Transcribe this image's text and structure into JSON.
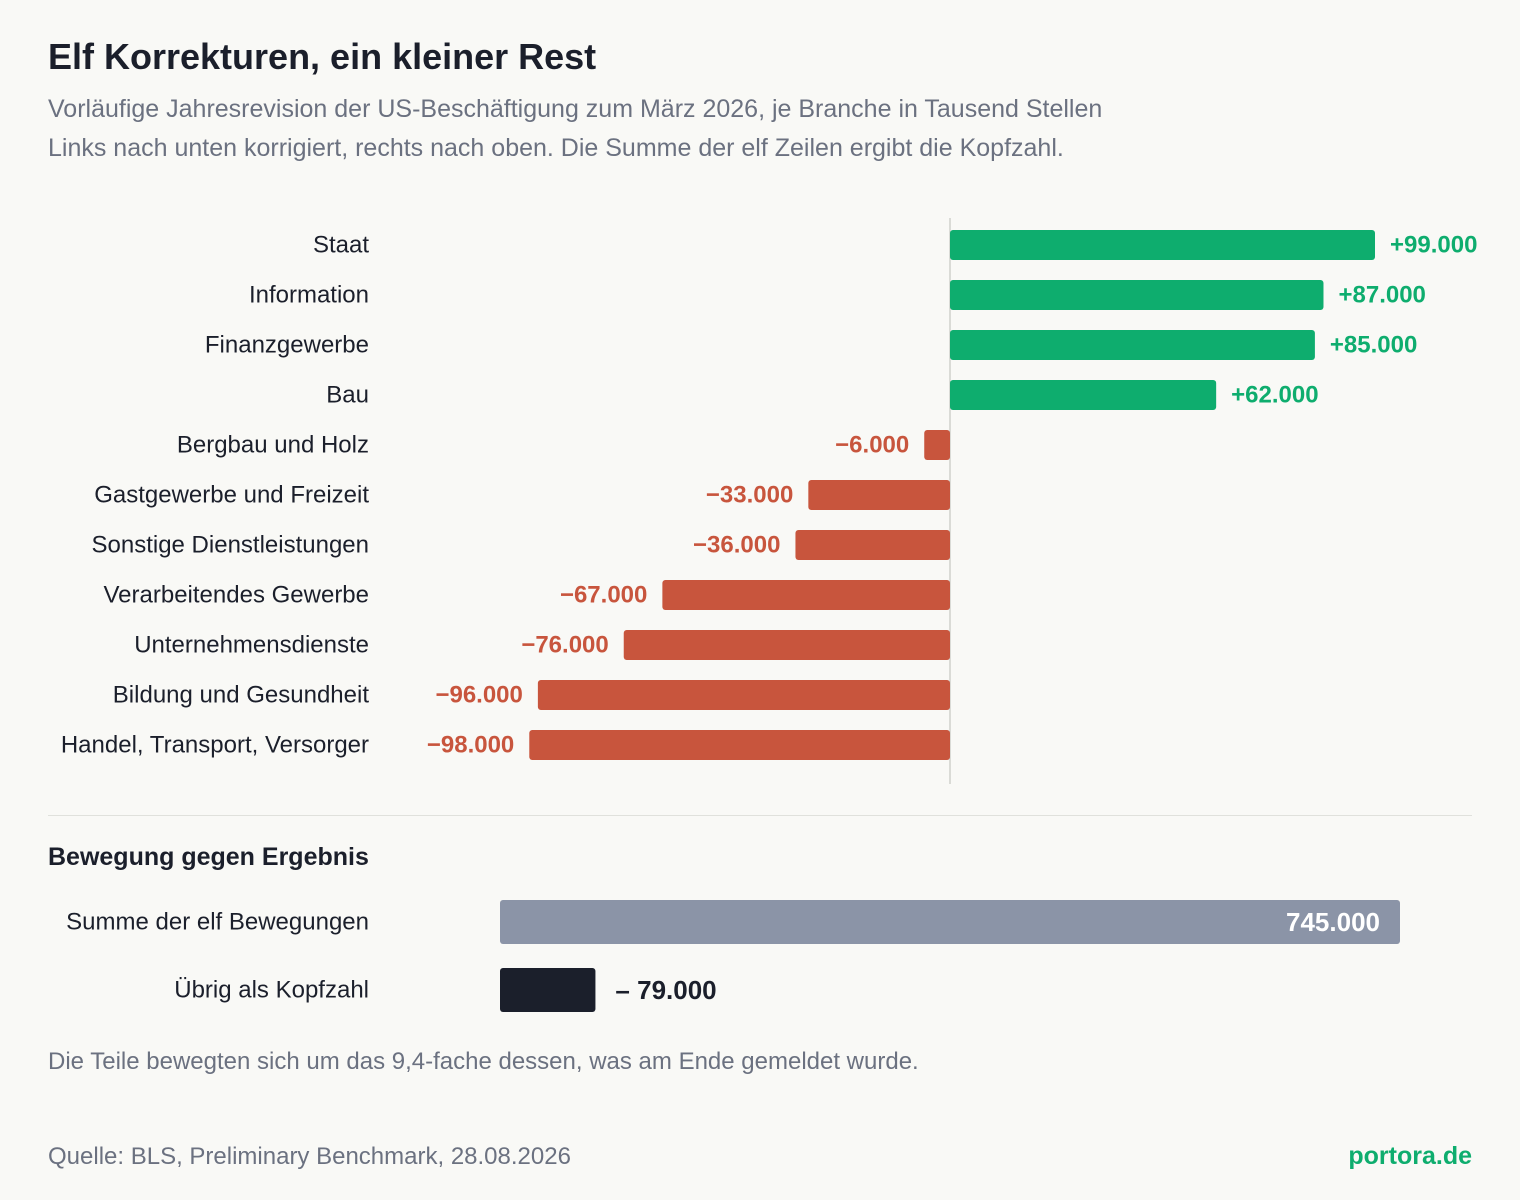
{
  "header": {
    "title": "Elf Korrekturen, ein kleiner Rest",
    "subtitle_line1": "Vorläufige Jahresrevision der US-Beschäftigung zum März 2026, je Branche in Tausend Stellen",
    "subtitle_line2": "Links nach unten korrigiert, rechts nach oben. Die Summe der elf Zeilen ergibt die Kopfzahl."
  },
  "colors": {
    "positive": "#0ead6e",
    "negative": "#c8553d",
    "total_bar": "#8b94a7",
    "net_bar": "#1b1f2b",
    "label": "#1b1f2b"
  },
  "chart_data": [
    {
      "type": "bar",
      "orientation": "horizontal",
      "categories": [
        "Staat",
        "Information",
        "Finanzgewerbe",
        "Bau",
        "Bergbau und Holz",
        "Gastgewerbe und Freizeit",
        "Sonstige Dienstleistungen",
        "Verarbeitendes Gewerbe",
        "Unternehmensdienste",
        "Bildung und Gesundheit",
        "Handel, Transport, Versorger"
      ],
      "values": [
        99000,
        87000,
        85000,
        62000,
        -6000,
        -33000,
        -36000,
        -67000,
        -76000,
        -96000,
        -98000
      ],
      "value_labels": [
        "+99.000",
        "+87.000",
        "+85.000",
        "+62.000",
        "−6.000",
        "−33.000",
        "−36.000",
        "−67.000",
        "−76.000",
        "−96.000",
        "−98.000"
      ],
      "xlim": [
        -135000,
        125000
      ],
      "zero_line": true,
      "grid": false,
      "legend": "none"
    },
    {
      "type": "bar",
      "orientation": "horizontal",
      "title": "Bewegung gegen Ergebnis",
      "categories": [
        "Summe der elf Bewegungen",
        "Übrig als Kopfzahl"
      ],
      "values": [
        745000,
        79000
      ],
      "value_labels": [
        "745.000",
        "– 79.000"
      ],
      "xlim": [
        0,
        745000
      ],
      "grid": false,
      "legend": "none"
    }
  ],
  "footer": {
    "note": "Die Teile bewegten sich um das 9,4-fache dessen, was am Ende gemeldet wurde.",
    "source": "Quelle: BLS, Preliminary Benchmark, 28.08.2026",
    "brand": "portora.de"
  }
}
